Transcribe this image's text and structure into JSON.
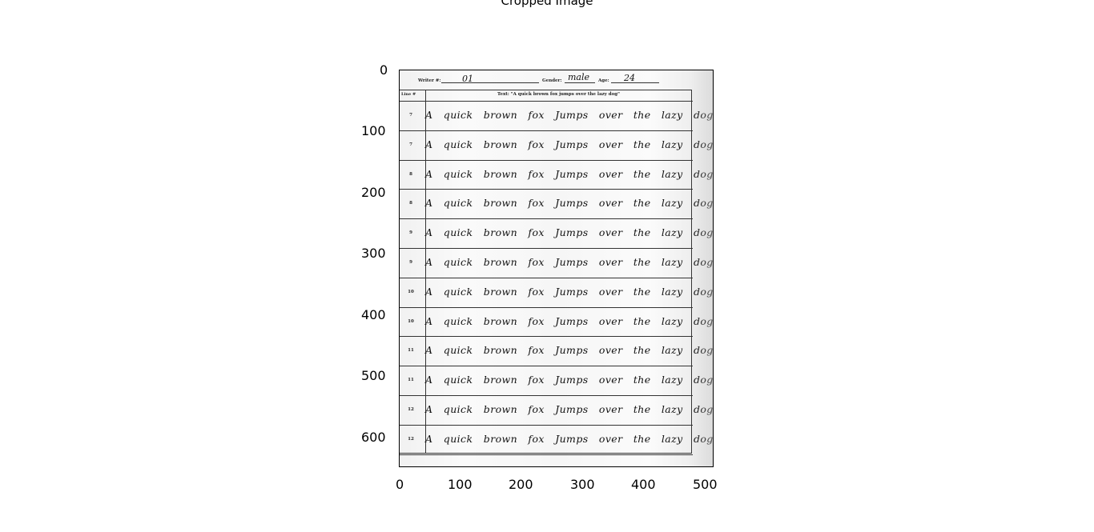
{
  "figure": {
    "title": "Cropped Image"
  },
  "axes": {
    "x_ticks": [
      "0",
      "100",
      "200",
      "300",
      "400",
      "500"
    ],
    "y_ticks": [
      "0",
      "100",
      "200",
      "300",
      "400",
      "500",
      "600"
    ]
  },
  "document": {
    "header": {
      "writer_label": "Writer #:",
      "writer_value": "01",
      "gender_label": "Gender:",
      "gender_value": "male",
      "age_label": "Age:",
      "age_value": "24"
    },
    "table_header": {
      "number_label": "Line #",
      "text_label": "Text: \"A quick brown fox jumps over the lazy dog\""
    },
    "rows": [
      {
        "no": "7",
        "text": "A quick brown fox Jumps over the lazy dog"
      },
      {
        "no": "7",
        "text": "A quick brown fox Jumps over the lazy dog"
      },
      {
        "no": "8",
        "text": "A quick brown fox Jumps over the lazy dog"
      },
      {
        "no": "8",
        "text": "A quick brown fox Jumps over the lazy dog"
      },
      {
        "no": "9",
        "text": "A quick brown fox Jumps over the lazy dog"
      },
      {
        "no": "9",
        "text": "A quick brown fox Jumps over the lazy dog"
      },
      {
        "no": "10",
        "text": "A quick brown fox Jumps over the lazy dog"
      },
      {
        "no": "10",
        "text": "A quick brown fox Jumps over the lazy dog"
      },
      {
        "no": "11",
        "text": "A quick brown fox Jumps over the lazy dog"
      },
      {
        "no": "11",
        "text": "A quick brown fox Jumps over the lazy dog"
      },
      {
        "no": "12",
        "text": "A quick brown fox Jumps over the lazy dog"
      },
      {
        "no": "12",
        "text": "A quick brown fox Jumps over the lazy dog"
      }
    ]
  }
}
